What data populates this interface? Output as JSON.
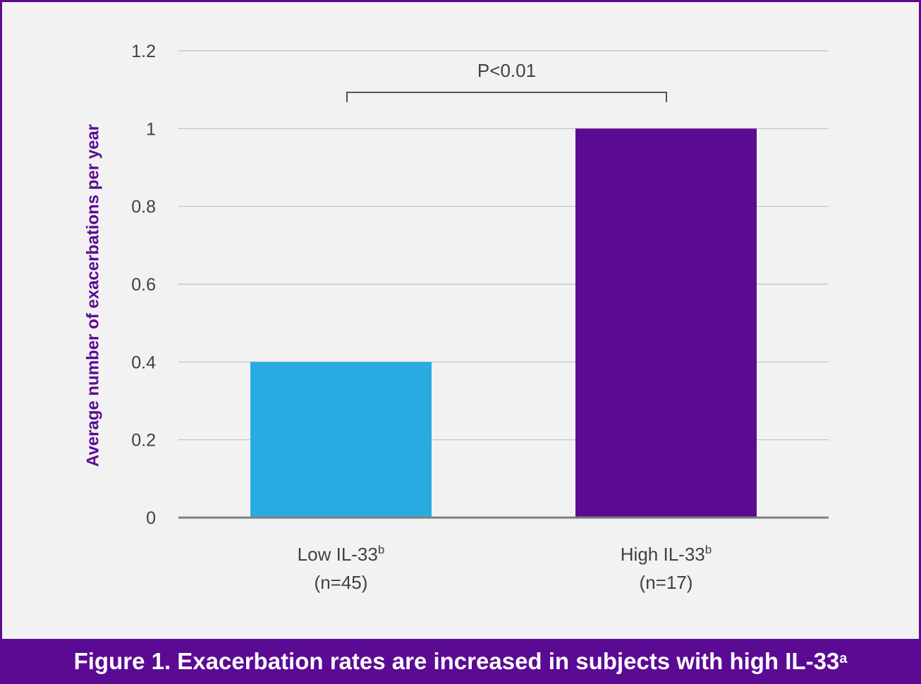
{
  "chart_data": {
    "type": "bar",
    "categories": [
      "Low IL-33",
      "High IL-33"
    ],
    "category_superscript": "b",
    "category_sublabels": [
      "(n=45)",
      "(n=17)"
    ],
    "values": [
      0.4,
      1.0
    ],
    "bar_colors": [
      "#29abe2",
      "#5b0a93"
    ],
    "ylabel": "Average number of exacerbations per year",
    "xlabel": "",
    "ylim": [
      0,
      1.2
    ],
    "yticks": [
      "0",
      "0.2",
      "0.4",
      "0.6",
      "0.8",
      "1",
      "1.2"
    ],
    "grid": true,
    "annotation": {
      "text": "P<0.01",
      "between": [
        0,
        1
      ]
    }
  },
  "caption": {
    "text": "Figure 1. Exacerbation rates are increased in subjects with high IL-33",
    "superscript": "a"
  },
  "colors": {
    "frame_border": "#5b0a93",
    "background": "#f2f2f2",
    "caption_bg": "#5b0a93",
    "gridline": "#bfbfbf",
    "axis": "#7f7f7f",
    "text": "#404040"
  }
}
